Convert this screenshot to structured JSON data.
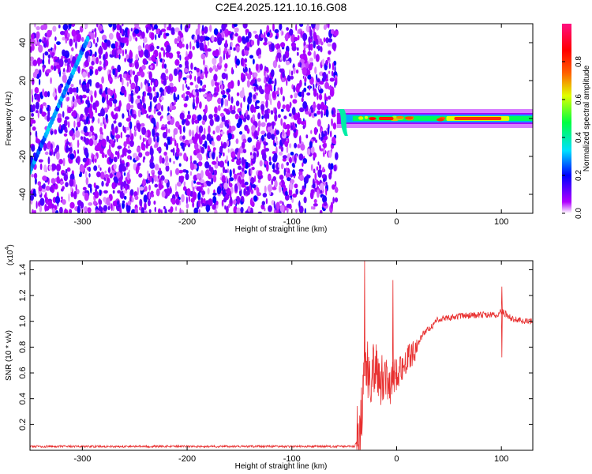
{
  "title": "C2E4.2025.121.10.16.G08",
  "chart_data": [
    {
      "type": "heatmap",
      "xlabel": "Height of straight line (km)",
      "ylabel": "Frequency (Hz)",
      "xlim": [
        -350,
        130
      ],
      "ylim": [
        -50,
        50
      ],
      "x_ticks": [
        -300,
        -200,
        -100,
        0,
        100
      ],
      "y_ticks": [
        -40,
        -20,
        0,
        20,
        40
      ],
      "colorbar": {
        "label": "Normalized spectral amplitude",
        "range": [
          0,
          1
        ],
        "ticks": [
          0.0,
          0.2,
          0.4,
          0.6,
          0.8
        ],
        "stops": [
          "#ffffff",
          "#b000ff",
          "#0000ff",
          "#00e0ff",
          "#00ff40",
          "#e0ff00",
          "#ff6000",
          "#ff0000",
          "#ff1080"
        ]
      },
      "features": {
        "noise_region_x": [
          -350,
          -57
        ],
        "signal_band_freq_hz": 0,
        "signal_start_x": -57,
        "high_amplitude_x": [
          55,
          100
        ],
        "diagonal_streak": [
          [
            -350,
            -28
          ],
          [
            -295,
            42
          ]
        ]
      }
    },
    {
      "type": "line",
      "xlabel": "Height of straight line (km)",
      "ylabel": "SNR (10 * v/v)",
      "y_multiplier": "(x10",
      "y_multiplier_exp": "4",
      "y_multiplier_close": ")",
      "xlim": [
        -350,
        130
      ],
      "ylim": [
        0,
        1.47
      ],
      "x_ticks": [
        -300,
        -200,
        -100,
        0,
        100
      ],
      "y_ticks": [
        0.2,
        0.4,
        0.6,
        0.8,
        1.0,
        1.2,
        1.4
      ],
      "series": [
        {
          "color": "#e83030",
          "values_x": [
            -350,
            -40,
            -35,
            -32,
            -30,
            -25,
            -20,
            -15,
            -10,
            -5,
            0,
            5,
            10,
            18,
            25,
            35,
            40,
            60,
            80,
            95,
            100,
            110,
            120,
            130
          ],
          "values_y": [
            0.03,
            0.03,
            0.15,
            0.5,
            0.65,
            0.55,
            0.7,
            0.55,
            0.6,
            0.5,
            0.62,
            0.65,
            0.7,
            0.78,
            0.9,
            0.97,
            1.02,
            1.04,
            1.05,
            1.05,
            1.08,
            1.02,
            1.0,
            1.0
          ],
          "spikes": [
            [
              -31,
              1.47
            ],
            [
              -4,
              1.32
            ],
            [
              100,
              1.27
            ],
            [
              100,
              0.72
            ]
          ]
        }
      ]
    }
  ]
}
